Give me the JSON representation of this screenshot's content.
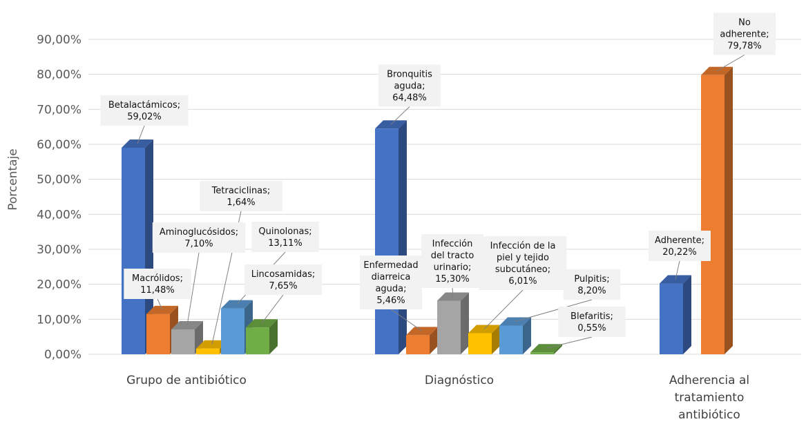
{
  "chart_data": {
    "type": "bar",
    "ylabel": "Porcentaje",
    "ylim": [
      0,
      90
    ],
    "yticks": [
      "0,00%",
      "10,00%",
      "20,00%",
      "30,00%",
      "40,00%",
      "50,00%",
      "60,00%",
      "70,00%",
      "80,00%",
      "90,00%"
    ],
    "grid": true,
    "style": "3d-clustered-column",
    "groups": [
      {
        "category": "Grupo de antibiótico",
        "bars": [
          {
            "name": "Betalactámicos",
            "value": 59.02,
            "label": [
              "Betalactámicos;",
              "59,02%"
            ],
            "color": "#4472C4"
          },
          {
            "name": "Macrólidos",
            "value": 11.48,
            "label": [
              "Macrólidos;",
              "11,48%"
            ],
            "color": "#ED7D31"
          },
          {
            "name": "Aminoglucósidos",
            "value": 7.1,
            "label": [
              "Aminoglucósidos;",
              "7,10%"
            ],
            "color": "#A5A5A5"
          },
          {
            "name": "Tetraciclinas",
            "value": 1.64,
            "label": [
              "Tetraciclinas;",
              "1,64%"
            ],
            "color": "#FFC000"
          },
          {
            "name": "Quinolonas",
            "value": 13.11,
            "label": [
              "Quinolonas;",
              "13,11%"
            ],
            "color": "#5B9BD5"
          },
          {
            "name": "Lincosamidas",
            "value": 7.65,
            "label": [
              "Lincosamidas;",
              "7,65%"
            ],
            "color": "#70AD47"
          }
        ]
      },
      {
        "category": "Diagnóstico",
        "bars": [
          {
            "name": "Bronquitis aguda",
            "value": 64.48,
            "label": [
              "Bronquitis",
              "aguda;",
              "64,48%"
            ],
            "color": "#4472C4"
          },
          {
            "name": "Enfermedad diarreica aguda",
            "value": 5.46,
            "label": [
              "Enfermedad",
              "diarreica",
              "aguda;",
              "5,46%"
            ],
            "color": "#ED7D31"
          },
          {
            "name": "Infección del tracto urinario",
            "value": 15.3,
            "label": [
              "Infección",
              "del tracto",
              "urinario;",
              "15,30%"
            ],
            "color": "#A5A5A5"
          },
          {
            "name": "Infección de la piel y tejido subcutáneo",
            "value": 6.01,
            "label": [
              "Infección de la",
              "piel y tejido",
              "subcutáneo;",
              "6,01%"
            ],
            "color": "#FFC000"
          },
          {
            "name": "Pulpitis",
            "value": 8.2,
            "label": [
              "Pulpitis;",
              "8,20%"
            ],
            "color": "#5B9BD5"
          },
          {
            "name": "Blefaritis",
            "value": 0.55,
            "label": [
              "Blefaritis;",
              "0,55%"
            ],
            "color": "#70AD47"
          }
        ]
      },
      {
        "category": "Adherencia al tratamiento antibiótico",
        "category_lines": [
          "Adherencia al",
          "tratamiento",
          "antibiótico"
        ],
        "bars": [
          {
            "name": "Adherente",
            "value": 20.22,
            "label": [
              "Adherente;",
              "20,22%"
            ],
            "color": "#4472C4"
          },
          {
            "name": "No adherente",
            "value": 79.78,
            "label": [
              "No",
              "adherente;",
              "79,78%"
            ],
            "color": "#ED7D31"
          }
        ]
      }
    ]
  }
}
